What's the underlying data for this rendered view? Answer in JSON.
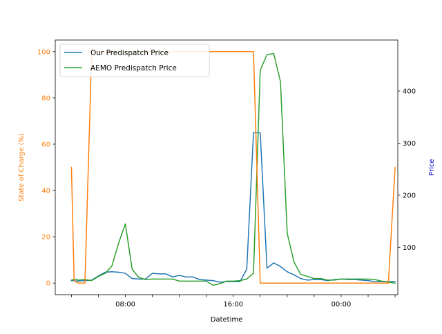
{
  "chart_data": {
    "type": "line",
    "xlabel": "Datetime",
    "ylabel_left": "State of Charge (%)",
    "ylabel_right": "Price",
    "x_unit": "hour (day 1, 04:00 start; values past 24 roll into next day)",
    "xlim": [
      2.8,
      28.2
    ],
    "ylim_left": [
      -5,
      105
    ],
    "ylim_right": [
      9,
      498
    ],
    "x_ticks": [
      4,
      6,
      8,
      10,
      12,
      14,
      16,
      18,
      20,
      22,
      24,
      26,
      28
    ],
    "x_tick_labels": [
      {
        "x": 8,
        "label": "08:00"
      },
      {
        "x": 16,
        "label": "16:00"
      },
      {
        "x": 24,
        "label": "00:00"
      }
    ],
    "y_ticks_left": [
      0,
      20,
      40,
      60,
      80,
      100
    ],
    "y_ticks_right": [
      100,
      200,
      300,
      400
    ],
    "legend_position": "top-left",
    "colors": {
      "soc": "#ff7f0e",
      "our_price": "#1f77b4",
      "aemo_price": "#2ca02c",
      "right_axis_label": "#0000cc"
    },
    "legend": [
      "Our Predispatch Price",
      "AEMO Predispatch Price"
    ],
    "series": [
      {
        "name": "Our Predispatch Price",
        "axis": "right",
        "color": "#1f77b4",
        "x": [
          4.0,
          4.5,
          5.0,
          5.5,
          6.0,
          6.5,
          7.0,
          7.5,
          8.0,
          8.5,
          9.0,
          9.5,
          10.0,
          10.5,
          11.0,
          11.5,
          12.0,
          12.5,
          13.0,
          13.5,
          14.0,
          14.5,
          15.0,
          15.5,
          16.0,
          16.5,
          17.0,
          17.5,
          18.0,
          18.5,
          19.0,
          19.5,
          20.0,
          20.5,
          21.0,
          21.5,
          22.0,
          22.5,
          23.0,
          23.5,
          24.0,
          24.5,
          25.0,
          25.5,
          26.0,
          26.5,
          27.0,
          27.5,
          28.0
        ],
        "y": [
          36,
          35,
          36,
          37,
          45,
          52,
          53,
          52,
          50,
          40,
          39,
          39,
          50,
          49,
          49,
          43,
          46,
          43,
          43,
          38,
          37,
          36,
          33,
          34,
          34,
          34,
          58,
          320,
          320,
          60,
          70,
          63,
          53,
          47,
          40,
          37,
          38,
          38,
          36,
          38,
          39,
          38,
          38,
          37,
          36,
          34,
          34,
          34,
          34
        ]
      },
      {
        "name": "AEMO Predispatch Price",
        "axis": "right",
        "color": "#2ca02c",
        "x": [
          4.0,
          4.3,
          4.5,
          5.0,
          5.5,
          6.0,
          6.5,
          7.0,
          7.5,
          8.0,
          8.5,
          9.0,
          9.5,
          10.0,
          10.5,
          11.0,
          11.5,
          12.0,
          12.5,
          13.0,
          13.5,
          14.0,
          14.5,
          15.0,
          15.5,
          16.0,
          16.5,
          17.0,
          17.5,
          18.0,
          18.5,
          19.0,
          19.5,
          20.0,
          20.5,
          21.0,
          21.5,
          22.0,
          22.5,
          23.0,
          23.5,
          24.0,
          24.5,
          25.0,
          25.5,
          26.0,
          26.5,
          27.0,
          27.5,
          28.0
        ],
        "y": [
          37,
          39,
          37,
          38,
          36,
          44,
          50,
          64,
          108,
          145,
          58,
          42,
          38,
          39,
          39,
          39,
          39,
          35,
          35,
          35,
          35,
          35,
          27,
          30,
          35,
          35,
          36,
          39,
          50,
          440,
          470,
          472,
          418,
          127,
          72,
          48,
          44,
          40,
          40,
          37,
          37,
          39,
          39,
          39,
          39,
          39,
          38,
          35,
          33,
          31
        ]
      },
      {
        "name": "State of Charge (%)",
        "axis": "left",
        "color": "#ff7f0e",
        "x": [
          4.0,
          4.2,
          4.5,
          5.0,
          5.5,
          6.0,
          6.5,
          7.0,
          7.5,
          8.0,
          8.5,
          9.0,
          9.5,
          10.0,
          10.5,
          11.0,
          11.5,
          12.0,
          12.5,
          13.0,
          13.5,
          14.0,
          14.5,
          15.0,
          15.5,
          16.0,
          16.5,
          17.0,
          17.5,
          18.0,
          18.5,
          19.0,
          19.5,
          20.0,
          20.5,
          21.0,
          21.5,
          22.0,
          22.5,
          23.0,
          23.5,
          24.0,
          24.5,
          25.0,
          25.5,
          26.0,
          26.5,
          27.0,
          27.5,
          28.0
        ],
        "y": [
          50,
          1,
          0,
          0,
          100,
          100,
          100,
          100,
          100,
          100,
          100,
          100,
          100,
          100,
          100,
          100,
          100,
          100,
          100,
          100,
          100,
          100,
          100,
          100,
          100,
          100,
          100,
          100,
          100,
          0,
          0,
          0,
          0,
          0,
          0,
          0,
          0,
          0,
          0,
          0,
          0,
          0,
          0,
          0,
          0,
          0,
          0,
          0,
          0,
          50
        ]
      }
    ]
  }
}
